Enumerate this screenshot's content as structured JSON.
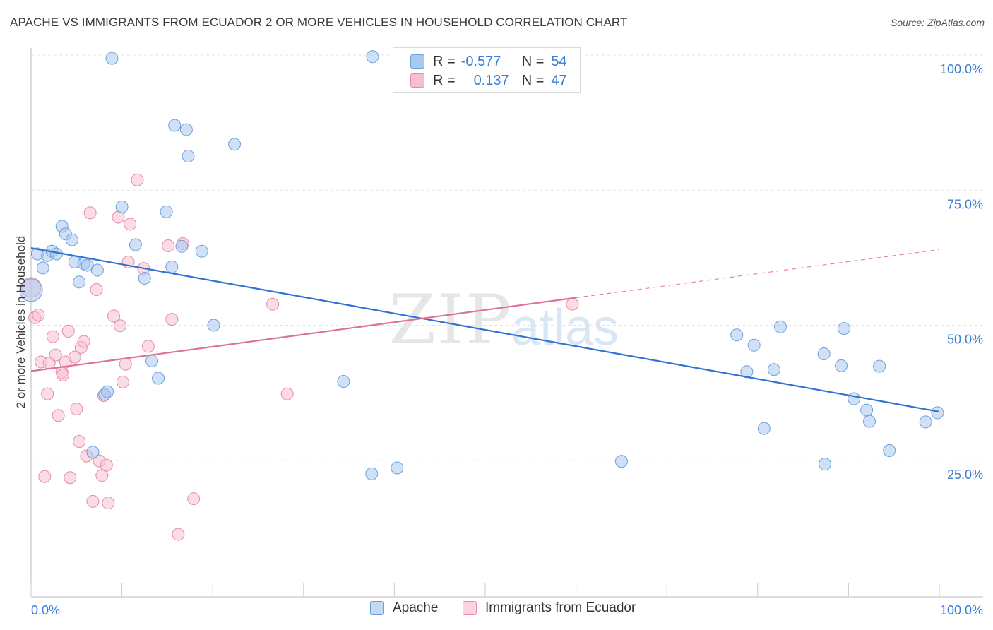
{
  "title": "APACHE VS IMMIGRANTS FROM ECUADOR 2 OR MORE VEHICLES IN HOUSEHOLD CORRELATION CHART",
  "source": "Source: ZipAtlas.com",
  "watermark": {
    "zip": "ZIP",
    "atlas": "atlas"
  },
  "stats": {
    "apache": {
      "r_label": "R =",
      "r_value": "-0.577",
      "n_label": "N =",
      "n_value": "54"
    },
    "ecuador": {
      "r_label": "R =",
      "r_value": "0.137",
      "n_label": "N =",
      "n_value": "47"
    }
  },
  "legend": {
    "apache": "Apache",
    "ecuador": "Immigrants from Ecuador"
  },
  "colors": {
    "apache_fill": "#a9c8f0",
    "apache_stroke": "#6f9fd8",
    "apache_line": "#2f72d0",
    "ecuador_fill": "#f6bfd0",
    "ecuador_stroke": "#e88aa8",
    "ecuador_line": "#e0709a",
    "tick_label": "#3b7dd8",
    "grid": "#e3e3e3"
  },
  "chart_data": {
    "type": "scatter",
    "title": "APACHE VS IMMIGRANTS FROM ECUADOR 2 OR MORE VEHICLES IN HOUSEHOLD CORRELATION CHART",
    "xlabel": "",
    "ylabel": "2 or more Vehicles in Household",
    "xlim": [
      0,
      100
    ],
    "ylim": [
      0,
      100
    ],
    "x_tick_labels": [
      "0.0%",
      "100.0%"
    ],
    "y_ticks": [
      25,
      50,
      75,
      100
    ],
    "y_tick_labels": [
      "25.0%",
      "50.0%",
      "75.0%",
      "100.0%"
    ],
    "grid": true,
    "legend_position": "bottom-center",
    "series": [
      {
        "name": "Apache",
        "r": -0.577,
        "n": 54,
        "trend": {
          "x": [
            0,
            100
          ],
          "y": [
            64.3,
            34.0
          ]
        },
        "points": [
          {
            "x": 0.0,
            "y": 56.5
          },
          {
            "x": 0.7,
            "y": 63.2
          },
          {
            "x": 1.3,
            "y": 60.6
          },
          {
            "x": 1.8,
            "y": 62.9
          },
          {
            "x": 2.3,
            "y": 63.7
          },
          {
            "x": 2.8,
            "y": 63.2
          },
          {
            "x": 3.4,
            "y": 68.3
          },
          {
            "x": 3.8,
            "y": 66.9
          },
          {
            "x": 4.5,
            "y": 65.8
          },
          {
            "x": 4.8,
            "y": 61.7
          },
          {
            "x": 5.3,
            "y": 58.0
          },
          {
            "x": 5.8,
            "y": 61.4
          },
          {
            "x": 6.2,
            "y": 61.1
          },
          {
            "x": 7.3,
            "y": 60.2
          },
          {
            "x": 6.8,
            "y": 26.5
          },
          {
            "x": 8.1,
            "y": 37.2
          },
          {
            "x": 8.4,
            "y": 37.7
          },
          {
            "x": 8.9,
            "y": 99.4
          },
          {
            "x": 10.0,
            "y": 71.9
          },
          {
            "x": 11.5,
            "y": 64.9
          },
          {
            "x": 12.5,
            "y": 58.7
          },
          {
            "x": 13.3,
            "y": 43.4
          },
          {
            "x": 14.0,
            "y": 40.2
          },
          {
            "x": 14.9,
            "y": 71.0
          },
          {
            "x": 15.5,
            "y": 60.8
          },
          {
            "x": 15.8,
            "y": 87.0
          },
          {
            "x": 16.6,
            "y": 64.6
          },
          {
            "x": 17.1,
            "y": 86.2
          },
          {
            "x": 17.3,
            "y": 81.3
          },
          {
            "x": 18.8,
            "y": 63.7
          },
          {
            "x": 20.1,
            "y": 50.0
          },
          {
            "x": 22.4,
            "y": 83.5
          },
          {
            "x": 34.4,
            "y": 39.6
          },
          {
            "x": 37.5,
            "y": 22.5
          },
          {
            "x": 37.6,
            "y": 99.7
          },
          {
            "x": 40.3,
            "y": 23.6
          },
          {
            "x": 65.0,
            "y": 24.8
          },
          {
            "x": 77.7,
            "y": 48.2
          },
          {
            "x": 78.8,
            "y": 41.4
          },
          {
            "x": 79.6,
            "y": 46.3
          },
          {
            "x": 80.7,
            "y": 30.9
          },
          {
            "x": 81.8,
            "y": 41.8
          },
          {
            "x": 82.5,
            "y": 49.7
          },
          {
            "x": 87.3,
            "y": 44.7
          },
          {
            "x": 87.4,
            "y": 24.3
          },
          {
            "x": 89.2,
            "y": 42.5
          },
          {
            "x": 89.5,
            "y": 49.4
          },
          {
            "x": 90.6,
            "y": 36.4
          },
          {
            "x": 92.0,
            "y": 34.3
          },
          {
            "x": 92.3,
            "y": 32.2
          },
          {
            "x": 93.4,
            "y": 42.4
          },
          {
            "x": 94.5,
            "y": 26.8
          },
          {
            "x": 98.5,
            "y": 32.1
          },
          {
            "x": 99.8,
            "y": 33.8
          }
        ]
      },
      {
        "name": "Immigrants from Ecuador",
        "r": 0.137,
        "n": 47,
        "trend": {
          "x": [
            0,
            60
          ],
          "y": [
            41.5,
            55.1
          ]
        },
        "trend_dashed": {
          "x": [
            60,
            100
          ],
          "y": [
            55.1,
            64.0
          ]
        },
        "points": [
          {
            "x": 0.0,
            "y": 57.0
          },
          {
            "x": 0.4,
            "y": 51.4
          },
          {
            "x": 0.8,
            "y": 51.9
          },
          {
            "x": 1.1,
            "y": 43.2
          },
          {
            "x": 1.5,
            "y": 22.0
          },
          {
            "x": 1.8,
            "y": 37.3
          },
          {
            "x": 2.0,
            "y": 43.0
          },
          {
            "x": 2.4,
            "y": 47.9
          },
          {
            "x": 2.7,
            "y": 44.5
          },
          {
            "x": 3.0,
            "y": 33.3
          },
          {
            "x": 3.4,
            "y": 41.3
          },
          {
            "x": 3.5,
            "y": 40.8
          },
          {
            "x": 3.8,
            "y": 43.2
          },
          {
            "x": 4.1,
            "y": 48.9
          },
          {
            "x": 4.3,
            "y": 21.8
          },
          {
            "x": 4.8,
            "y": 44.1
          },
          {
            "x": 5.0,
            "y": 34.5
          },
          {
            "x": 5.3,
            "y": 28.5
          },
          {
            "x": 5.5,
            "y": 45.9
          },
          {
            "x": 5.8,
            "y": 47.0
          },
          {
            "x": 6.1,
            "y": 25.8
          },
          {
            "x": 6.5,
            "y": 70.8
          },
          {
            "x": 6.8,
            "y": 17.4
          },
          {
            "x": 7.2,
            "y": 56.6
          },
          {
            "x": 7.5,
            "y": 24.9
          },
          {
            "x": 7.8,
            "y": 22.2
          },
          {
            "x": 8.0,
            "y": 37.0
          },
          {
            "x": 8.3,
            "y": 24.1
          },
          {
            "x": 8.5,
            "y": 17.1
          },
          {
            "x": 9.1,
            "y": 51.7
          },
          {
            "x": 9.6,
            "y": 70.0
          },
          {
            "x": 9.8,
            "y": 49.9
          },
          {
            "x": 10.1,
            "y": 39.5
          },
          {
            "x": 10.4,
            "y": 42.8
          },
          {
            "x": 10.7,
            "y": 61.7
          },
          {
            "x": 10.9,
            "y": 68.7
          },
          {
            "x": 11.7,
            "y": 76.9
          },
          {
            "x": 12.4,
            "y": 60.5
          },
          {
            "x": 12.9,
            "y": 46.1
          },
          {
            "x": 15.1,
            "y": 64.7
          },
          {
            "x": 15.5,
            "y": 51.1
          },
          {
            "x": 16.2,
            "y": 11.3
          },
          {
            "x": 16.7,
            "y": 65.1
          },
          {
            "x": 17.9,
            "y": 17.9
          },
          {
            "x": 26.6,
            "y": 53.9
          },
          {
            "x": 28.2,
            "y": 37.3
          },
          {
            "x": 59.6,
            "y": 53.9
          }
        ]
      }
    ]
  }
}
